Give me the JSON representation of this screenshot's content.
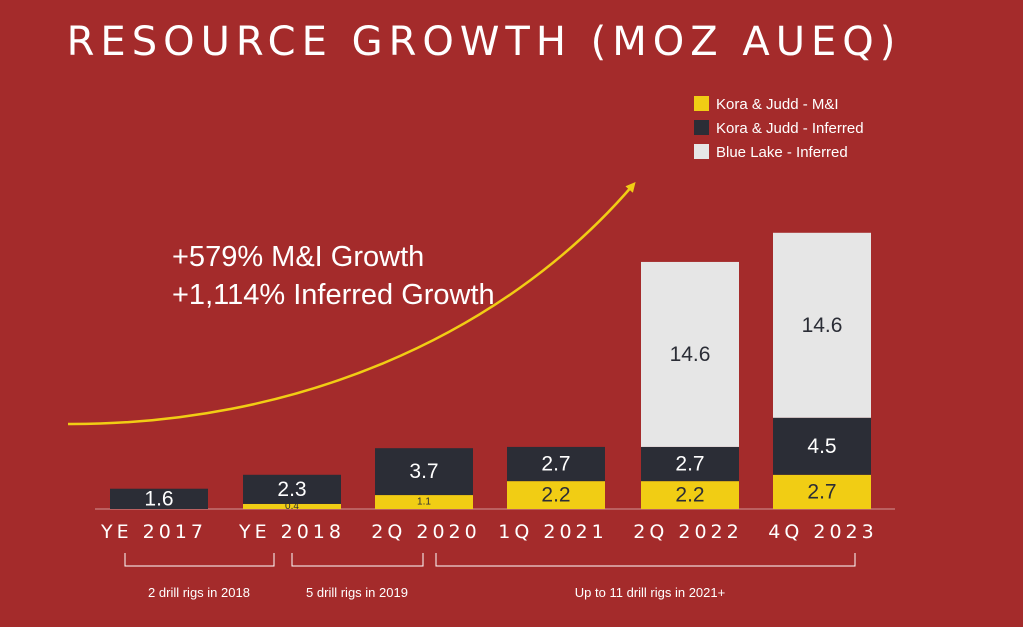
{
  "chart_data": {
    "type": "bar",
    "stacked": true,
    "title": "RESOURCE GROWTH (MOZ AUEQ)",
    "categories": [
      "YE 2017",
      "YE 2018",
      "2Q 2020",
      "1Q 2021",
      "2Q 2022",
      "4Q 2023"
    ],
    "series": [
      {
        "name": "Kora & Judd - M&I",
        "color": "#f1cd14",
        "values": [
          0,
          0.4,
          1.1,
          2.2,
          2.2,
          2.7
        ]
      },
      {
        "name": "Kora & Judd - Inferred",
        "color": "#2b2d36",
        "values": [
          1.6,
          2.3,
          3.7,
          2.7,
          2.7,
          4.5
        ]
      },
      {
        "name": "Blue Lake - Inferred",
        "color": "#e6e6e6",
        "values": [
          0,
          0,
          0,
          0,
          14.6,
          14.6
        ]
      }
    ],
    "legend_position": "top-right",
    "grid": false,
    "annotations": [
      "+579% M&I Growth",
      "+1,114% Inferred Growth"
    ],
    "period_notes": [
      "2 drill rigs in 2018",
      "5 drill rigs in 2019",
      "Up to 11 drill rigs in 2021+"
    ]
  }
}
